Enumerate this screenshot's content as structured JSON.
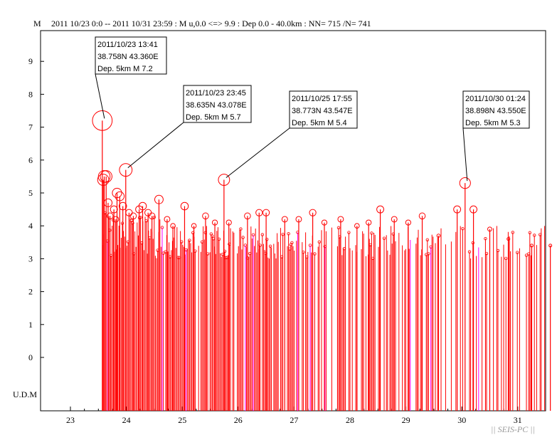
{
  "header": {
    "ylabel": "M",
    "query": "2011 10/23 0:0 -- 2011 10/31 23:59  : M u,0.0 <=> 9.9   :  Dep 0.0 - 40.0km :  NN= 715 /N= 741"
  },
  "credit": "|| SEIS-PC ||",
  "chart_data": {
    "type": "stem",
    "title": "",
    "xlabel": "",
    "ylabel": "M",
    "xlim": [
      "2011-10-23 00:00",
      "2011-11-01 00:00"
    ],
    "ylim": [
      -1,
      10
    ],
    "x_tick_labels": [
      "23",
      "24",
      "25",
      "26",
      "27",
      "28",
      "29",
      "30",
      "31"
    ],
    "y_tick_labels": [
      "9",
      "8",
      "7",
      "6",
      "5",
      "4",
      "3",
      "2",
      "1",
      "0"
    ],
    "y_tick_values": [
      9,
      8,
      7,
      6,
      5,
      4,
      3,
      2,
      1,
      0
    ],
    "undetermined_label": "U.D.M",
    "colors": {
      "stem": "#ff0000",
      "minor": "#ff00ff",
      "axis": "#000000"
    },
    "annotations": [
      {
        "time": "2011-10-23 13:41",
        "line1": "2011/10/23 13:41",
        "line2": "38.758N   43.360E",
        "line3": "Dep. 5km    M 7.2",
        "mag": 7.2
      },
      {
        "time": "2011-10-23 23:45",
        "line1": "2011/10/23 23:45",
        "line2": "38.635N   43.078E",
        "line3": "Dep. 5km    M 5.7",
        "mag": 5.7
      },
      {
        "time": "2011-10-25 17:55",
        "line1": "2011/10/25 17:55",
        "line2": "38.773N   43.547E",
        "line3": "Dep. 5km    M 5.4",
        "mag": 5.4
      },
      {
        "time": "2011-10-30 01:24",
        "line1": "2011/10/30 01:24",
        "line2": "38.898N   43.550E",
        "line3": "Dep. 5km    M 5.3",
        "mag": 5.3
      }
    ],
    "events": [
      {
        "t": "2011-10-23 13:41",
        "m": 7.2
      },
      {
        "t": "2011-10-23 14:05",
        "m": 5.4
      },
      {
        "t": "2011-10-23 14:30",
        "m": 5.5
      },
      {
        "t": "2011-10-23 15:20",
        "m": 5.5
      },
      {
        "t": "2011-10-23 16:10",
        "m": 4.7
      },
      {
        "t": "2011-10-23 17:00",
        "m": 4.3
      },
      {
        "t": "2011-10-23 18:40",
        "m": 4.5
      },
      {
        "t": "2011-10-23 19:30",
        "m": 4.2
      },
      {
        "t": "2011-10-23 20:00",
        "m": 5.0
      },
      {
        "t": "2011-10-23 21:10",
        "m": 4.9
      },
      {
        "t": "2011-10-23 22:30",
        "m": 4.6
      },
      {
        "t": "2011-10-23 23:45",
        "m": 5.7
      },
      {
        "t": "2011-10-24 01:10",
        "m": 4.4
      },
      {
        "t": "2011-10-24 03:00",
        "m": 4.3
      },
      {
        "t": "2011-10-24 05:30",
        "m": 4.5
      },
      {
        "t": "2011-10-24 07:00",
        "m": 4.6
      },
      {
        "t": "2011-10-24 09:20",
        "m": 4.4
      },
      {
        "t": "2011-10-24 11:00",
        "m": 4.3
      },
      {
        "t": "2011-10-24 14:00",
        "m": 4.8
      },
      {
        "t": "2011-10-24 17:30",
        "m": 4.2
      },
      {
        "t": "2011-10-24 20:00",
        "m": 4.0
      },
      {
        "t": "2011-10-25 01:00",
        "m": 4.6
      },
      {
        "t": "2011-10-25 05:00",
        "m": 4.0
      },
      {
        "t": "2011-10-25 10:00",
        "m": 4.3
      },
      {
        "t": "2011-10-25 14:00",
        "m": 4.1
      },
      {
        "t": "2011-10-25 17:55",
        "m": 5.4
      },
      {
        "t": "2011-10-25 20:00",
        "m": 4.1
      },
      {
        "t": "2011-10-26 04:00",
        "m": 4.3
      },
      {
        "t": "2011-10-26 09:00",
        "m": 4.4
      },
      {
        "t": "2011-10-26 12:00",
        "m": 4.4
      },
      {
        "t": "2011-10-26 20:00",
        "m": 4.2
      },
      {
        "t": "2011-10-27 02:00",
        "m": 4.2
      },
      {
        "t": "2011-10-27 08:00",
        "m": 4.4
      },
      {
        "t": "2011-10-27 13:00",
        "m": 4.1
      },
      {
        "t": "2011-10-27 20:00",
        "m": 4.2
      },
      {
        "t": "2011-10-28 03:00",
        "m": 4.0
      },
      {
        "t": "2011-10-28 08:00",
        "m": 4.1
      },
      {
        "t": "2011-10-28 13:00",
        "m": 4.5
      },
      {
        "t": "2011-10-28 19:00",
        "m": 4.2
      },
      {
        "t": "2011-10-29 01:00",
        "m": 4.1
      },
      {
        "t": "2011-10-29 07:00",
        "m": 4.3
      },
      {
        "t": "2011-10-29 14:00",
        "m": 3.7
      },
      {
        "t": "2011-10-29 22:00",
        "m": 4.5
      },
      {
        "t": "2011-10-30 01:24",
        "m": 5.3
      },
      {
        "t": "2011-10-30 05:00",
        "m": 4.5
      },
      {
        "t": "2011-10-30 12:00",
        "m": 3.9
      },
      {
        "t": "2011-10-30 20:00",
        "m": 3.6
      },
      {
        "t": "2011-10-31 06:00",
        "m": 3.4
      },
      {
        "t": "2011-10-31 14:00",
        "m": 3.4
      },
      {
        "t": "2011-10-31 20:00",
        "m": 3.7
      }
    ],
    "background_rate_note": ""
  }
}
